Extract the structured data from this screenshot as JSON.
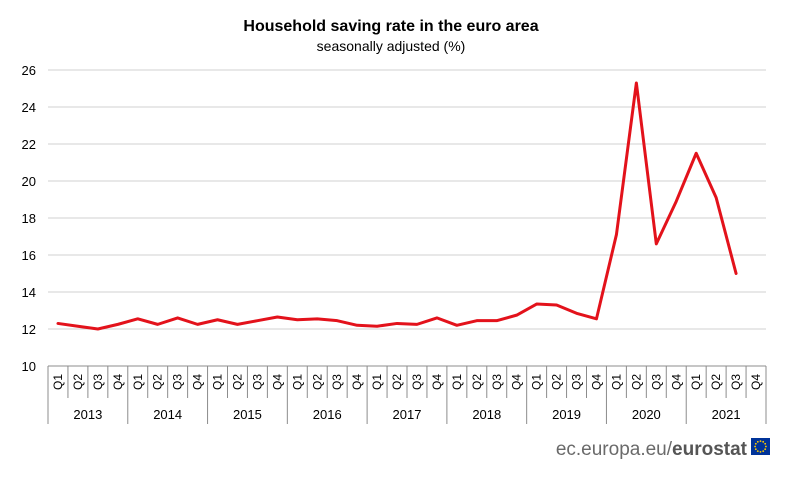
{
  "chart_data": {
    "type": "line",
    "title": "Household saving rate in the euro area",
    "subtitle": "seasonally adjusted (%)",
    "xlabel": "",
    "ylabel": "",
    "ylim": [
      10,
      26
    ],
    "yticks": [
      10,
      12,
      14,
      16,
      18,
      20,
      22,
      24,
      26
    ],
    "grid": true,
    "years": [
      "2013",
      "2014",
      "2015",
      "2016",
      "2017",
      "2018",
      "2019",
      "2020",
      "2021"
    ],
    "quarters": [
      "Q1",
      "Q2",
      "Q3",
      "Q4"
    ],
    "series": [
      {
        "color": "#e3121b",
        "values": [
          12.3,
          12.15,
          12.0,
          12.25,
          12.55,
          12.25,
          12.6,
          12.25,
          12.5,
          12.25,
          12.45,
          12.65,
          12.5,
          12.55,
          12.45,
          12.2,
          12.15,
          12.3,
          12.25,
          12.6,
          12.2,
          12.45,
          12.45,
          12.75,
          13.35,
          13.3,
          12.85,
          12.55,
          17.1,
          25.3,
          16.6,
          18.9,
          21.5,
          19.1,
          15.0,
          null
        ]
      }
    ]
  },
  "footer": {
    "domain": "ec.europa.eu/",
    "brand": "eurostat"
  },
  "colors": {
    "gridline": "#d0d0d0",
    "axis": "#8c8c8c",
    "flag_blue": "#003399",
    "flag_yellow": "#ffcc00"
  }
}
